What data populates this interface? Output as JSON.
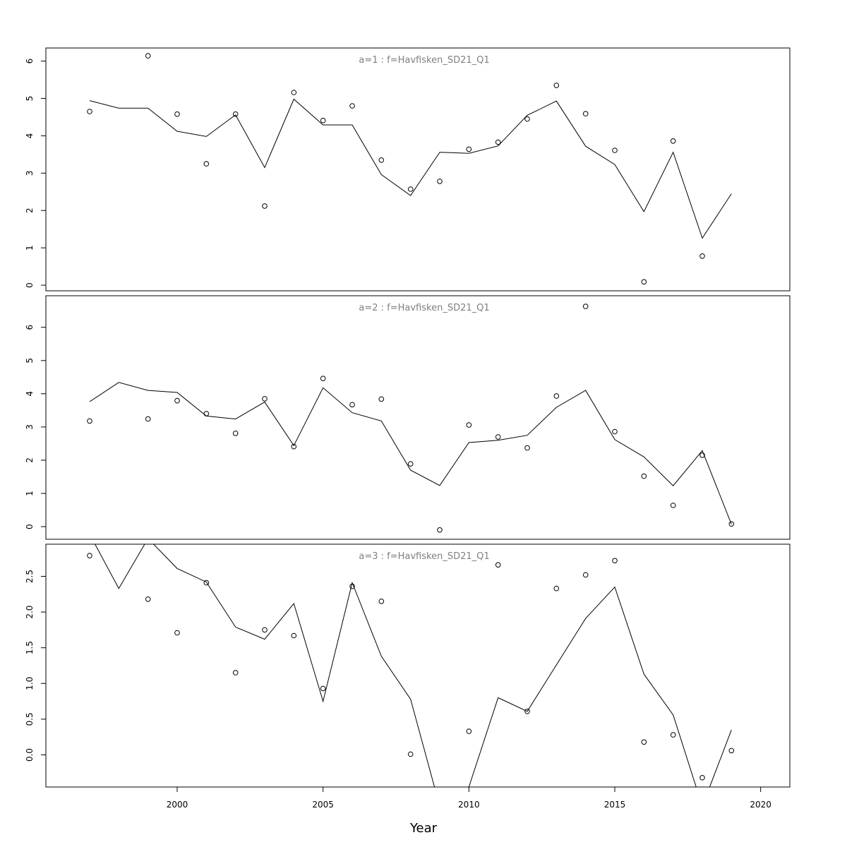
{
  "chart_data": {
    "type": "line",
    "xlabel": "Year",
    "x_ticks": [
      2000,
      2005,
      2010,
      2015,
      2020
    ],
    "x": [
      1997,
      1998,
      1999,
      2000,
      2001,
      2002,
      2003,
      2004,
      2005,
      2006,
      2007,
      2008,
      2009,
      2010,
      2011,
      2012,
      2013,
      2014,
      2015,
      2016,
      2017,
      2018,
      2019
    ],
    "panels": [
      {
        "title": "a=1  :  f=Havfisken_SD21_Q1",
        "ylim": [
          -0.15,
          6.35
        ],
        "y_ticks": [
          0,
          1,
          2,
          3,
          4,
          5,
          6
        ],
        "y_tick_labels": [
          "0",
          "1",
          "2",
          "3",
          "4",
          "5",
          "6"
        ],
        "line": [
          4.94,
          4.74,
          4.74,
          4.12,
          3.98,
          4.56,
          3.15,
          4.98,
          4.29,
          4.29,
          2.96,
          2.4,
          3.56,
          3.53,
          3.73,
          4.55,
          4.93,
          3.72,
          3.23,
          1.97,
          3.56,
          1.26,
          2.45
        ],
        "points": [
          {
            "x": 1997,
            "y": 4.65
          },
          {
            "x": 1999,
            "y": 6.14
          },
          {
            "x": 2000,
            "y": 4.58
          },
          {
            "x": 2001,
            "y": 3.25
          },
          {
            "x": 2002,
            "y": 4.58
          },
          {
            "x": 2003,
            "y": 2.12
          },
          {
            "x": 2004,
            "y": 5.16
          },
          {
            "x": 2005,
            "y": 4.41
          },
          {
            "x": 2006,
            "y": 4.8
          },
          {
            "x": 2007,
            "y": 3.35
          },
          {
            "x": 2008,
            "y": 2.57
          },
          {
            "x": 2009,
            "y": 2.78
          },
          {
            "x": 2010,
            "y": 3.64
          },
          {
            "x": 2011,
            "y": 3.83
          },
          {
            "x": 2012,
            "y": 4.45
          },
          {
            "x": 2013,
            "y": 5.35
          },
          {
            "x": 2014,
            "y": 4.59
          },
          {
            "x": 2015,
            "y": 3.61
          },
          {
            "x": 2016,
            "y": 0.09
          },
          {
            "x": 2017,
            "y": 3.86
          },
          {
            "x": 2018,
            "y": 0.78
          }
        ]
      },
      {
        "title": "a=2  :  f=Havfisken_SD21_Q1",
        "ylim": [
          -0.38,
          6.95
        ],
        "y_ticks": [
          0,
          1,
          2,
          3,
          4,
          5,
          6
        ],
        "y_tick_labels": [
          "0",
          "1",
          "2",
          "3",
          "4",
          "5",
          "6"
        ],
        "line": [
          3.76,
          4.34,
          4.1,
          4.04,
          3.33,
          3.24,
          3.75,
          2.44,
          4.18,
          3.43,
          3.18,
          1.7,
          1.24,
          2.53,
          2.6,
          2.75,
          3.59,
          4.1,
          2.62,
          2.1,
          1.23,
          2.29,
          0.07
        ],
        "points": [
          {
            "x": 1997,
            "y": 3.18
          },
          {
            "x": 1999,
            "y": 3.24
          },
          {
            "x": 2000,
            "y": 3.79
          },
          {
            "x": 2001,
            "y": 3.4
          },
          {
            "x": 2002,
            "y": 2.81
          },
          {
            "x": 2003,
            "y": 3.85
          },
          {
            "x": 2004,
            "y": 2.41
          },
          {
            "x": 2005,
            "y": 4.46
          },
          {
            "x": 2006,
            "y": 3.67
          },
          {
            "x": 2007,
            "y": 3.84
          },
          {
            "x": 2008,
            "y": 1.89
          },
          {
            "x": 2009,
            "y": -0.1
          },
          {
            "x": 2010,
            "y": 3.06
          },
          {
            "x": 2011,
            "y": 2.7
          },
          {
            "x": 2012,
            "y": 2.37
          },
          {
            "x": 2013,
            "y": 3.93
          },
          {
            "x": 2014,
            "y": 6.63
          },
          {
            "x": 2015,
            "y": 2.86
          },
          {
            "x": 2016,
            "y": 1.52
          },
          {
            "x": 2017,
            "y": 0.64
          },
          {
            "x": 2018,
            "y": 2.15
          },
          {
            "x": 2019,
            "y": 0.08
          }
        ]
      },
      {
        "title": "a=3  :  f=Havfisken_SD21_Q1",
        "ylim": [
          -0.45,
          2.95
        ],
        "y_ticks": [
          0,
          0.5,
          1,
          1.5,
          2,
          2.5
        ],
        "y_tick_labels": [
          "0.0",
          "0.5",
          "1.0",
          "1.5",
          "2.0",
          "2.5"
        ],
        "line": [
          3.09,
          2.33,
          3.03,
          2.61,
          2.42,
          1.79,
          1.62,
          2.12,
          0.75,
          2.41,
          1.38,
          0.78,
          -0.72,
          -0.45,
          0.8,
          0.61,
          1.26,
          1.91,
          2.35,
          1.13,
          0.56,
          -0.72,
          0.35
        ],
        "points": [
          {
            "x": 1997,
            "y": 2.79
          },
          {
            "x": 1999,
            "y": 2.18
          },
          {
            "x": 2000,
            "y": 1.71
          },
          {
            "x": 2001,
            "y": 2.41
          },
          {
            "x": 2002,
            "y": 1.15
          },
          {
            "x": 2003,
            "y": 1.75
          },
          {
            "x": 2004,
            "y": 1.67
          },
          {
            "x": 2005,
            "y": 0.93
          },
          {
            "x": 2006,
            "y": 2.36
          },
          {
            "x": 2007,
            "y": 2.15
          },
          {
            "x": 2008,
            "y": 0.01
          },
          {
            "x": 2010,
            "y": 0.33
          },
          {
            "x": 2011,
            "y": 2.66
          },
          {
            "x": 2012,
            "y": 0.61
          },
          {
            "x": 2013,
            "y": 2.33
          },
          {
            "x": 2014,
            "y": 2.52
          },
          {
            "x": 2015,
            "y": 2.72
          },
          {
            "x": 2016,
            "y": 0.18
          },
          {
            "x": 2017,
            "y": 0.28
          },
          {
            "x": 2018,
            "y": -0.32
          },
          {
            "x": 2019,
            "y": 0.06
          }
        ]
      }
    ]
  }
}
